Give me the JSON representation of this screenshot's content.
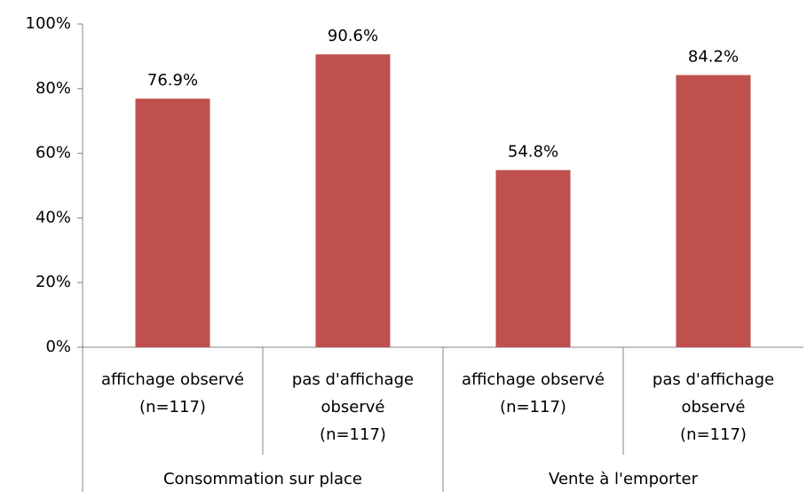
{
  "chart_data": {
    "type": "bar",
    "categories": [
      [
        "affichage observé",
        "(n=117)"
      ],
      [
        "pas d'affichage",
        "observé",
        "(n=117)"
      ],
      [
        "affichage observé",
        "(n=117)"
      ],
      [
        "pas d'affichage",
        "observé",
        "(n=117)"
      ]
    ],
    "groups": [
      {
        "name": "Consommation sur place",
        "size": 2
      },
      {
        "name": "Vente à l'emporter",
        "size": 2
      }
    ],
    "values": [
      76.9,
      90.6,
      54.8,
      84.2
    ],
    "value_labels": [
      "76.9%",
      "90.6%",
      "54.8%",
      "84.2%"
    ],
    "color": "#c0504d",
    "ylim": [
      0,
      100
    ],
    "yticks": [
      {
        "value": 0,
        "label": "0%"
      },
      {
        "value": 20,
        "label": "20%"
      },
      {
        "value": 40,
        "label": "40%"
      },
      {
        "value": 60,
        "label": "60%"
      },
      {
        "value": 80,
        "label": "80%"
      },
      {
        "value": 100,
        "label": "100%"
      }
    ],
    "grid": false
  }
}
